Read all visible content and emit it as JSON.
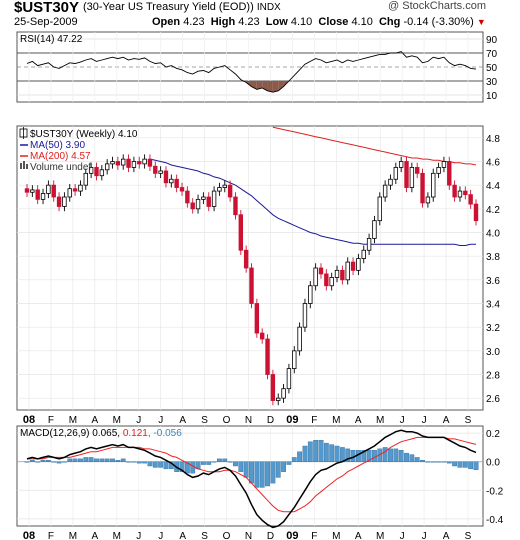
{
  "header": {
    "symbol": "$UST30Y",
    "description": "(30-Year US Treasury Yield (EOD))",
    "exchange": "INDX",
    "watermark": "@ StockCharts.com",
    "date": "25-Sep-2009",
    "open_label": "Open",
    "open": "4.23",
    "high_label": "High",
    "high": "4.23",
    "low_label": "Low",
    "low": "4.10",
    "close_label": "Close",
    "close": "4.10",
    "chg_label": "Chg",
    "chg": "-0.14 (-3.30%)"
  },
  "colors": {
    "up": "#ffffff",
    "down": "#cc1133",
    "ma50": "#1a1a99",
    "ma200": "#dd2222",
    "macd": "#000000",
    "signal": "#ee2222",
    "hist": "#5599cc",
    "rsi": "#000000",
    "rsi_fill": "#8b5a4a"
  },
  "rsi_panel": {
    "label": "RSI(14) 47.22",
    "ticks": [
      "90",
      "70",
      "50",
      "30",
      "10"
    ],
    "levels": [
      90,
      70,
      50,
      30,
      10
    ]
  },
  "price_panel": {
    "title": "$UST30Y (Weekly) 4.10",
    "legend": [
      {
        "text": "MA(50) 3.90",
        "color": "#1a1a99"
      },
      {
        "text": "MA(200) 4.57",
        "color": "#dd2222"
      },
      {
        "text": "Volume undef",
        "color": "#555555"
      }
    ],
    "ticks": [
      "4.8",
      "4.6",
      "4.4",
      "4.2",
      "4.0",
      "3.8",
      "3.6",
      "3.4",
      "3.2",
      "3.0",
      "2.8",
      "2.6"
    ]
  },
  "macd_panel": {
    "label_main": "MACD(12,26,9) 0.065,",
    "label_signal": "0.121,",
    "label_hist": "-0.056",
    "ticks": [
      "0.2",
      "0.0",
      "-0.2",
      "-0.4"
    ]
  },
  "x_axis": {
    "labels": [
      "08",
      "F",
      "M",
      "A",
      "M",
      "J",
      "J",
      "A",
      "S",
      "O",
      "N",
      "D",
      "09",
      "F",
      "M",
      "A",
      "M",
      "J",
      "J",
      "A",
      "S"
    ]
  },
  "chart_data": {
    "type": "candlestick",
    "title": "$UST30Y (Weekly) 4.10",
    "period": "Weekly, Jan 2008 - Sep 2009",
    "close": [
      4.34,
      4.36,
      4.28,
      4.33,
      4.4,
      4.3,
      4.22,
      4.3,
      4.37,
      4.35,
      4.4,
      4.5,
      4.55,
      4.48,
      4.53,
      4.58,
      4.6,
      4.57,
      4.62,
      4.55,
      4.6,
      4.58,
      4.62,
      4.56,
      4.5,
      4.52,
      4.42,
      4.45,
      4.38,
      4.35,
      4.25,
      4.2,
      4.28,
      4.3,
      4.22,
      4.35,
      4.38,
      4.4,
      4.3,
      4.15,
      3.85,
      3.7,
      3.4,
      3.15,
      3.1,
      2.8,
      2.58,
      2.6,
      2.68,
      2.85,
      3.0,
      3.2,
      3.4,
      3.55,
      3.7,
      3.65,
      3.55,
      3.62,
      3.68,
      3.6,
      3.75,
      3.68,
      3.78,
      3.85,
      3.95,
      4.1,
      4.3,
      4.4,
      4.45,
      4.55,
      4.6,
      4.38,
      4.55,
      4.5,
      4.25,
      4.3,
      4.5,
      4.55,
      4.6,
      4.4,
      4.3,
      4.35,
      4.32,
      4.24,
      4.1
    ],
    "ma50": [
      null,
      null,
      null,
      null,
      null,
      null,
      null,
      null,
      null,
      null,
      null,
      null,
      null,
      null,
      null,
      null,
      null,
      null,
      null,
      null,
      null,
      null,
      null,
      4.62,
      4.61,
      4.6,
      4.59,
      4.57,
      4.56,
      4.55,
      4.54,
      4.53,
      4.52,
      4.5,
      4.49,
      4.47,
      4.46,
      4.44,
      4.42,
      4.4,
      4.37,
      4.34,
      4.31,
      4.27,
      4.23,
      4.19,
      4.15,
      4.12,
      4.1,
      4.08,
      4.06,
      4.04,
      4.02,
      4.0,
      3.99,
      3.97,
      3.96,
      3.95,
      3.94,
      3.93,
      3.92,
      3.91,
      3.91,
      3.9,
      3.9,
      3.9,
      3.9,
      3.9,
      3.9,
      3.9,
      3.9,
      3.9,
      3.9,
      3.9,
      3.9,
      3.9,
      3.9,
      3.9,
      3.9,
      3.9,
      3.9,
      3.89,
      3.89,
      3.9,
      3.9
    ],
    "ma200": [
      null,
      null,
      null,
      null,
      null,
      null,
      null,
      null,
      null,
      null,
      null,
      null,
      null,
      null,
      null,
      null,
      null,
      null,
      null,
      null,
      null,
      null,
      null,
      null,
      null,
      null,
      null,
      null,
      null,
      null,
      null,
      null,
      null,
      null,
      null,
      null,
      null,
      null,
      null,
      null,
      null,
      null,
      null,
      null,
      null,
      null,
      4.89,
      4.88,
      4.87,
      4.86,
      4.85,
      4.84,
      4.83,
      4.82,
      4.81,
      4.8,
      4.79,
      4.78,
      4.77,
      4.76,
      4.75,
      4.74,
      4.73,
      4.72,
      4.71,
      4.7,
      4.69,
      4.68,
      4.67,
      4.66,
      4.65,
      4.64,
      4.63,
      4.63,
      4.62,
      4.62,
      4.61,
      4.61,
      4.6,
      4.6,
      4.59,
      4.59,
      4.58,
      4.58,
      4.57
    ],
    "rsi": [
      55,
      58,
      52,
      54,
      56,
      50,
      48,
      52,
      56,
      55,
      57,
      60,
      62,
      58,
      60,
      62,
      64,
      62,
      64,
      60,
      62,
      61,
      63,
      58,
      55,
      56,
      50,
      52,
      48,
      46,
      42,
      40,
      44,
      45,
      42,
      48,
      50,
      52,
      46,
      40,
      32,
      28,
      22,
      18,
      20,
      16,
      14,
      16,
      22,
      30,
      38,
      46,
      54,
      58,
      62,
      60,
      56,
      58,
      60,
      56,
      60,
      58,
      60,
      62,
      64,
      66,
      68,
      68,
      70,
      70,
      72,
      64,
      66,
      64,
      56,
      58,
      64,
      62,
      64,
      56,
      52,
      54,
      52,
      48,
      47
    ],
    "macd": [
      0.02,
      0.03,
      0.02,
      0.03,
      0.04,
      0.03,
      0.02,
      0.03,
      0.05,
      0.06,
      0.07,
      0.09,
      0.1,
      0.09,
      0.1,
      0.11,
      0.12,
      0.11,
      0.12,
      0.1,
      0.1,
      0.09,
      0.08,
      0.06,
      0.04,
      0.03,
      0.01,
      -0.01,
      -0.04,
      -0.06,
      -0.09,
      -0.11,
      -0.1,
      -0.08,
      -0.09,
      -0.07,
      -0.05,
      -0.04,
      -0.06,
      -0.1,
      -0.16,
      -0.22,
      -0.3,
      -0.37,
      -0.41,
      -0.44,
      -0.46,
      -0.45,
      -0.42,
      -0.37,
      -0.32,
      -0.26,
      -0.2,
      -0.14,
      -0.09,
      -0.06,
      -0.05,
      -0.03,
      -0.01,
      0.0,
      0.02,
      0.03,
      0.05,
      0.07,
      0.09,
      0.11,
      0.14,
      0.17,
      0.19,
      0.21,
      0.22,
      0.21,
      0.21,
      0.2,
      0.18,
      0.17,
      0.17,
      0.17,
      0.17,
      0.15,
      0.13,
      0.11,
      0.1,
      0.08,
      0.065
    ],
    "signal": [
      0.02,
      0.02,
      0.02,
      0.02,
      0.03,
      0.03,
      0.03,
      0.03,
      0.03,
      0.04,
      0.05,
      0.06,
      0.07,
      0.07,
      0.08,
      0.09,
      0.1,
      0.1,
      0.1,
      0.1,
      0.1,
      0.1,
      0.09,
      0.09,
      0.08,
      0.07,
      0.06,
      0.04,
      0.03,
      0.01,
      -0.01,
      -0.03,
      -0.05,
      -0.06,
      -0.07,
      -0.07,
      -0.07,
      -0.06,
      -0.06,
      -0.07,
      -0.09,
      -0.11,
      -0.15,
      -0.19,
      -0.23,
      -0.27,
      -0.31,
      -0.34,
      -0.35,
      -0.35,
      -0.35,
      -0.33,
      -0.31,
      -0.28,
      -0.24,
      -0.21,
      -0.18,
      -0.15,
      -0.12,
      -0.1,
      -0.07,
      -0.05,
      -0.03,
      -0.01,
      0.01,
      0.03,
      0.05,
      0.07,
      0.1,
      0.12,
      0.14,
      0.15,
      0.16,
      0.17,
      0.17,
      0.17,
      0.17,
      0.17,
      0.17,
      0.16,
      0.16,
      0.15,
      0.14,
      0.13,
      0.121
    ],
    "ylim_price": [
      2.5,
      4.9
    ],
    "ylim_rsi": [
      0,
      100
    ],
    "ylim_macd": [
      -0.45,
      0.25
    ]
  }
}
